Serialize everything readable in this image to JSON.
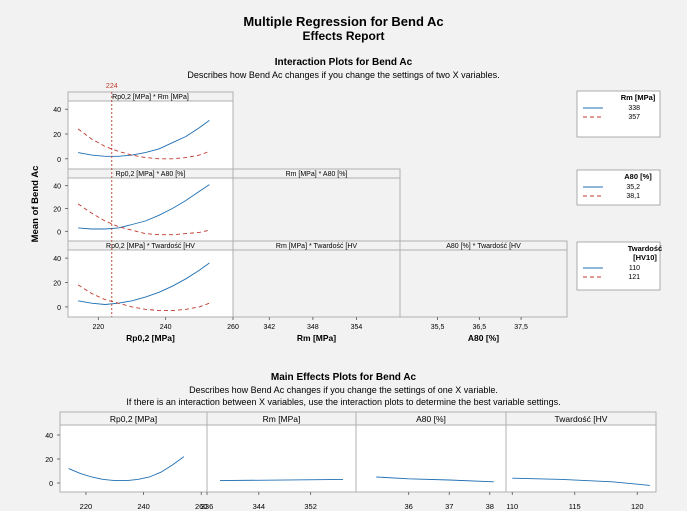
{
  "report": {
    "title": "Multiple Regression for Bend Ac",
    "subtitle": "Effects Report"
  },
  "interaction": {
    "title": "Interaction Plots for Bend Ac",
    "description": "Describes how Bend Ac changes if you change the settings of two X variables."
  },
  "main_effects": {
    "title": "Main Effects Plots for Bend Ac",
    "description_1": "Describes how Bend Ac changes if you change the settings of one X variable.",
    "description_2": "If there is an interaction between X variables, use the interaction plots to determine the best variable settings."
  },
  "colors": {
    "background": "#f2f2f2",
    "panel": "#ffffff",
    "series_low": "#1f6fb4",
    "series_high": "#c0392b",
    "reference_line": "#c0392b",
    "panel_border": "#b0b0b0"
  },
  "chart_data": [
    {
      "type": "line",
      "title": "Interaction Plots for Bend Ac",
      "ylabel": "Mean of Bend Ac",
      "ylim": [
        -5,
        45
      ],
      "yticks": [
        0,
        20,
        40
      ],
      "reference_line": {
        "variable": "Rp0,2 [MPa]",
        "value": 224,
        "label": "224"
      },
      "axes": [
        {
          "xlabel": "Rp0,2 [MPa]",
          "xlim": [
            211,
            260
          ],
          "xticks": [
            220,
            240,
            260
          ]
        },
        {
          "xlabel": "Rm [MPa]",
          "xlim": [
            337,
            360
          ],
          "xticks": [
            342,
            348,
            354
          ]
        },
        {
          "xlabel": "A80 [%]",
          "xlim": [
            34.6,
            38.6
          ],
          "xticks": [
            "35,5",
            "36,5",
            "37,5"
          ]
        }
      ],
      "legends": [
        {
          "title": "Rm [MPa]",
          "entries": [
            "338",
            "357"
          ]
        },
        {
          "title": "A80 [%]",
          "entries": [
            "35,2",
            "38,1"
          ]
        },
        {
          "title": "Twardość [HV10]",
          "entries": [
            "110",
            "121"
          ]
        }
      ],
      "panels": [
        {
          "title": "Rp0,2 [MPa] * Rm [MPa]",
          "x": [
            214,
            218,
            222,
            226,
            230,
            234,
            238,
            242,
            246,
            250,
            253
          ],
          "series": [
            {
              "name": "338",
              "values": [
                5,
                3,
                2,
                2,
                3,
                5,
                8,
                13,
                18,
                25,
                31
              ]
            },
            {
              "name": "357",
              "values": [
                24,
                16,
                10,
                6,
                3,
                1,
                0,
                0,
                1,
                3,
                6
              ]
            }
          ]
        },
        {
          "title": "Rp0,2 [MPa] * A80 [%]",
          "x": [
            214,
            218,
            222,
            226,
            230,
            234,
            238,
            242,
            246,
            250,
            253
          ],
          "series": [
            {
              "name": "35,2",
              "values": [
                3,
                2,
                2,
                3,
                6,
                9,
                14,
                20,
                27,
                35,
                41
              ]
            },
            {
              "name": "38,1",
              "values": [
                24,
                16,
                9,
                4,
                1,
                -2,
                -3,
                -3,
                -2,
                -1,
                1
              ]
            }
          ]
        },
        {
          "title": "Rp0,2 [MPa] * Twardość [HV",
          "x": [
            214,
            218,
            222,
            226,
            230,
            234,
            238,
            242,
            246,
            250,
            253
          ],
          "series": [
            {
              "name": "110",
              "values": [
                5,
                3,
                2,
                3,
                5,
                8,
                12,
                17,
                23,
                30,
                36
              ]
            },
            {
              "name": "121",
              "values": [
                18,
                11,
                6,
                3,
                0,
                -2,
                -3,
                -3,
                -2,
                0,
                3
              ]
            }
          ]
        },
        {
          "title": "Rm [MPa] * A80 [%]",
          "series": []
        },
        {
          "title": "Rm [MPa] * Twardość [HV",
          "series": []
        },
        {
          "title": "A80 [%] * Twardość [HV",
          "series": []
        }
      ]
    },
    {
      "type": "line",
      "title": "Main Effects Plots for Bend Ac",
      "ylim": [
        -5,
        45
      ],
      "yticks": [
        0,
        20,
        40
      ],
      "panels": [
        {
          "title": "Rp0,2 [MPa]",
          "xlim": [
            211,
            262
          ],
          "xticks": [
            "220",
            "240",
            "260"
          ],
          "x": [
            214,
            218,
            222,
            226,
            230,
            234,
            238,
            242,
            246,
            250,
            254
          ],
          "values": [
            12,
            8,
            5,
            3,
            2,
            2,
            3,
            5,
            9,
            15,
            22
          ]
        },
        {
          "title": "Rm [MPa]",
          "xlim": [
            336,
            359
          ],
          "xticks": [
            "336",
            "344",
            "352"
          ],
          "x": [
            338,
            357
          ],
          "values": [
            2,
            3
          ]
        },
        {
          "title": "A80 [%]",
          "xlim": [
            34.7,
            38.4
          ],
          "xticks": [
            "36",
            "37",
            "38"
          ],
          "x": [
            35.2,
            36,
            37,
            38.1
          ],
          "values": [
            5,
            3.5,
            2.5,
            1
          ]
        },
        {
          "title": "Twardość [HV",
          "xlim": [
            109.5,
            121.5
          ],
          "xticks": [
            "110",
            "115",
            "120"
          ],
          "x": [
            110,
            114,
            118,
            121
          ],
          "values": [
            4,
            3,
            1,
            -2
          ]
        }
      ]
    }
  ]
}
